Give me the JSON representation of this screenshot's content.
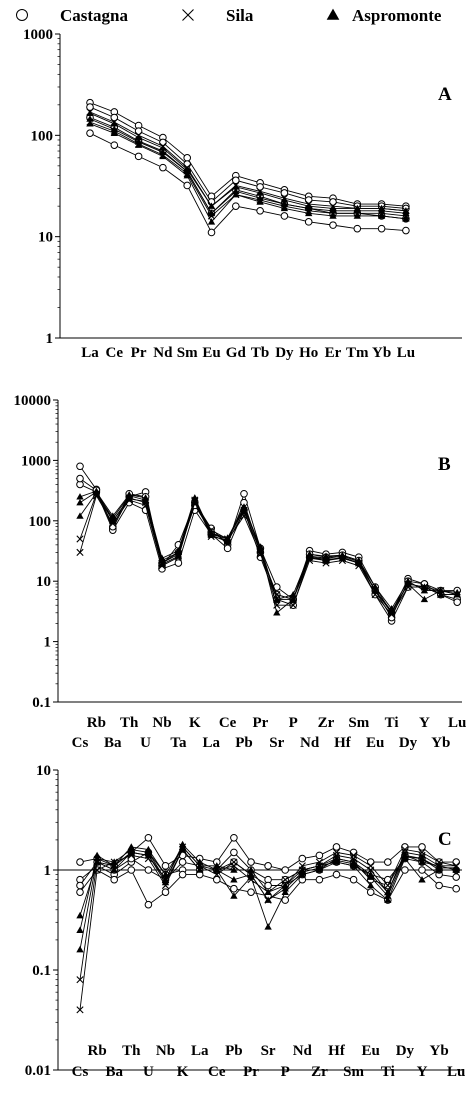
{
  "legend": [
    {
      "name": "Castagna",
      "marker": "circle"
    },
    {
      "name": "Sila",
      "marker": "cross"
    },
    {
      "name": "Aspromonte",
      "marker": "triangle"
    }
  ],
  "chart_data": [
    {
      "type": "line",
      "panel": "A",
      "y_scale": "log",
      "ylim": [
        1,
        1000
      ],
      "y_ticks": [
        "1",
        "10",
        "100",
        "1000"
      ],
      "reference_line": null,
      "categories": [
        "La",
        "Ce",
        "Pr",
        "Nd",
        "Sm",
        "Eu",
        "Gd",
        "Tb",
        "Dy",
        "Ho",
        "Er",
        "Tm",
        "Yb",
        "Lu"
      ],
      "series": [
        {
          "group": "Castagna",
          "values": [
            210,
            170,
            125,
            95,
            60,
            25,
            40,
            34,
            29,
            25,
            24,
            21,
            21,
            20
          ]
        },
        {
          "group": "Castagna",
          "values": [
            190,
            150,
            110,
            85,
            52,
            22,
            36,
            31,
            27,
            23,
            22,
            20,
            20,
            19
          ]
        },
        {
          "group": "Castagna",
          "values": [
            105,
            80,
            62,
            48,
            32,
            11,
            20,
            18,
            16,
            14,
            13,
            12,
            12,
            11.5
          ]
        },
        {
          "group": "Castagna",
          "values": [
            150,
            120,
            88,
            70,
            44,
            17,
            29,
            25,
            21,
            19,
            17,
            17,
            16,
            15
          ]
        },
        {
          "group": "Sila",
          "values": [
            170,
            135,
            100,
            78,
            48,
            20,
            32,
            28,
            24,
            21,
            20,
            19,
            19,
            18
          ]
        },
        {
          "group": "Sila",
          "values": [
            135,
            110,
            82,
            64,
            42,
            16,
            26,
            23,
            20,
            18,
            17,
            17,
            17,
            16
          ]
        },
        {
          "group": "Aspromonte",
          "values": [
            165,
            130,
            95,
            75,
            46,
            20,
            31,
            27,
            23,
            20,
            19,
            19,
            19,
            18
          ]
        },
        {
          "group": "Aspromonte",
          "values": [
            130,
            105,
            80,
            62,
            40,
            14,
            26,
            22,
            19,
            17,
            16,
            16,
            16,
            15
          ]
        },
        {
          "group": "Aspromonte",
          "values": [
            145,
            115,
            86,
            68,
            44,
            17,
            28,
            24,
            21,
            19,
            18,
            18,
            18,
            17
          ]
        }
      ]
    },
    {
      "type": "line",
      "panel": "B",
      "y_scale": "log",
      "ylim": [
        0.1,
        10000
      ],
      "y_ticks": [
        "0.1",
        "1",
        "10",
        "100",
        "1000",
        "10000"
      ],
      "reference_line": null,
      "categories": [
        "Cs",
        "Rb",
        "Ba",
        "Th",
        "U",
        "Nb",
        "Ta",
        "K",
        "La",
        "Ce",
        "Pb",
        "Pr",
        "Sr",
        "P",
        "Nd",
        "Zr",
        "Hf",
        "Sm",
        "Eu",
        "Ti",
        "Dy",
        "Y",
        "Yb",
        "Lu"
      ],
      "series": [
        {
          "group": "Castagna",
          "values": [
            800,
            330,
            75,
            250,
            300,
            18,
            40,
            200,
            75,
            40,
            280,
            35,
            8,
            5,
            32,
            28,
            30,
            25,
            8,
            3,
            11,
            9,
            7,
            7
          ]
        },
        {
          "group": "Castagna",
          "values": [
            400,
            300,
            70,
            200,
            150,
            16,
            20,
            150,
            60,
            35,
            150,
            25,
            5,
            4,
            25,
            22,
            25,
            20,
            6,
            2.2,
            8,
            8,
            6,
            5
          ]
        },
        {
          "group": "Castagna",
          "values": [
            500,
            320,
            80,
            280,
            250,
            20,
            30,
            180,
            65,
            45,
            200,
            30,
            6,
            5,
            28,
            25,
            27,
            22,
            7,
            2.5,
            10,
            9,
            6,
            4.5
          ]
        },
        {
          "group": "Sila",
          "values": [
            30,
            260,
            90,
            220,
            180,
            18,
            25,
            210,
            70,
            50,
            150,
            30,
            4,
            4,
            22,
            20,
            22,
            18,
            6,
            2.8,
            8,
            8,
            6,
            6
          ]
        },
        {
          "group": "Sila",
          "values": [
            50,
            280,
            100,
            240,
            200,
            20,
            28,
            220,
            55,
            48,
            120,
            28,
            6,
            5,
            24,
            22,
            24,
            20,
            7,
            3,
            9,
            8,
            7,
            6
          ]
        },
        {
          "group": "Aspromonte",
          "values": [
            120,
            290,
            110,
            260,
            220,
            22,
            30,
            230,
            60,
            50,
            160,
            35,
            3,
            5,
            26,
            24,
            26,
            21,
            7,
            3.2,
            9,
            5,
            7,
            6
          ]
        },
        {
          "group": "Aspromonte",
          "values": [
            200,
            300,
            120,
            270,
            240,
            24,
            32,
            240,
            62,
            52,
            170,
            37,
            5,
            6,
            28,
            26,
            27,
            22,
            8,
            3.5,
            10,
            7,
            7,
            6.5
          ]
        },
        {
          "group": "Aspromonte",
          "values": [
            250,
            310,
            100,
            230,
            210,
            19,
            26,
            200,
            58,
            45,
            140,
            32,
            5,
            5,
            25,
            23,
            24,
            20,
            7,
            3,
            9,
            8,
            6,
            6
          ]
        }
      ]
    },
    {
      "type": "line",
      "panel": "C",
      "y_scale": "log",
      "ylim": [
        0.01,
        10
      ],
      "y_ticks": [
        "0.01",
        "0.1",
        "1",
        "10"
      ],
      "reference_line": 1,
      "categories": [
        "Cs",
        "Rb",
        "Ba",
        "Th",
        "U",
        "Nb",
        "K",
        "La",
        "Ce",
        "Pb",
        "Pr",
        "Sr",
        "P",
        "Nd",
        "Zr",
        "Hf",
        "Sm",
        "Eu",
        "Ti",
        "Dy",
        "Y",
        "Yb",
        "Lu"
      ],
      "series": [
        {
          "group": "Castagna",
          "values": [
            1.2,
            1.3,
            1.1,
            1.5,
            2.1,
            1.1,
            1.4,
            1.3,
            1.2,
            2.1,
            1.2,
            1.1,
            1.0,
            1.3,
            1.4,
            1.7,
            1.5,
            1.2,
            1.2,
            1.7,
            1.7,
            1.2,
            1.2
          ]
        },
        {
          "group": "Castagna",
          "values": [
            0.8,
            1.1,
            0.9,
            1.2,
            1.5,
            0.9,
            1.0,
            1.0,
            1.0,
            1.5,
            1.0,
            0.8,
            0.8,
            1.0,
            1.1,
            1.2,
            1.1,
            0.9,
            0.8,
            1.3,
            1.2,
            0.9,
            0.85
          ]
        },
        {
          "group": "Castagna",
          "values": [
            0.6,
            1.0,
            0.8,
            1.0,
            0.45,
            0.6,
            0.9,
            0.9,
            0.8,
            0.65,
            0.6,
            0.55,
            0.5,
            0.8,
            0.8,
            0.9,
            0.8,
            0.6,
            0.5,
            1.0,
            1.0,
            0.7,
            0.65
          ]
        },
        {
          "group": "Castagna",
          "values": [
            0.7,
            1.2,
            1.0,
            1.3,
            1.0,
            0.8,
            1.2,
            1.1,
            1.0,
            1.2,
            0.9,
            0.7,
            0.7,
            0.9,
            1.0,
            1.3,
            1.2,
            0.8,
            0.7,
            1.4,
            1.3,
            1.0,
            1.0
          ]
        },
        {
          "group": "Sila",
          "values": [
            0.04,
            1.0,
            1.2,
            1.4,
            1.3,
            0.7,
            1.6,
            1.0,
            1.0,
            1.1,
            0.8,
            0.6,
            0.8,
            1.0,
            1.1,
            1.4,
            1.3,
            1.0,
            0.6,
            1.5,
            1.4,
            1.1,
            1.1
          ]
        },
        {
          "group": "Sila",
          "values": [
            0.08,
            1.2,
            1.1,
            1.5,
            1.4,
            0.8,
            1.7,
            1.1,
            0.9,
            1.2,
            0.9,
            0.5,
            0.7,
            1.1,
            1.2,
            1.5,
            1.4,
            1.1,
            0.7,
            1.6,
            1.5,
            1.2,
            1.1
          ]
        },
        {
          "group": "Aspromonte",
          "values": [
            0.16,
            1.3,
            1.2,
            1.6,
            1.5,
            0.8,
            1.8,
            1.2,
            1.0,
            0.55,
            0.85,
            0.27,
            0.6,
            0.9,
            1.0,
            1.2,
            1.1,
            0.7,
            0.5,
            1.3,
            0.8,
            1.0,
            1.0
          ]
        },
        {
          "group": "Aspromonte",
          "values": [
            0.25,
            1.4,
            1.1,
            1.7,
            1.6,
            0.9,
            1.7,
            1.1,
            1.1,
            1.0,
            1.0,
            0.6,
            0.7,
            1.0,
            1.1,
            1.3,
            1.2,
            0.9,
            0.6,
            1.4,
            1.2,
            1.1,
            1.0
          ]
        },
        {
          "group": "Aspromonte",
          "values": [
            0.35,
            1.2,
            1.0,
            1.5,
            1.4,
            0.75,
            1.6,
            1.0,
            1.0,
            0.8,
            0.9,
            0.5,
            0.65,
            0.95,
            1.05,
            1.25,
            1.15,
            0.85,
            0.55,
            1.35,
            1.3,
            1.05,
            1.05
          ]
        }
      ]
    }
  ]
}
